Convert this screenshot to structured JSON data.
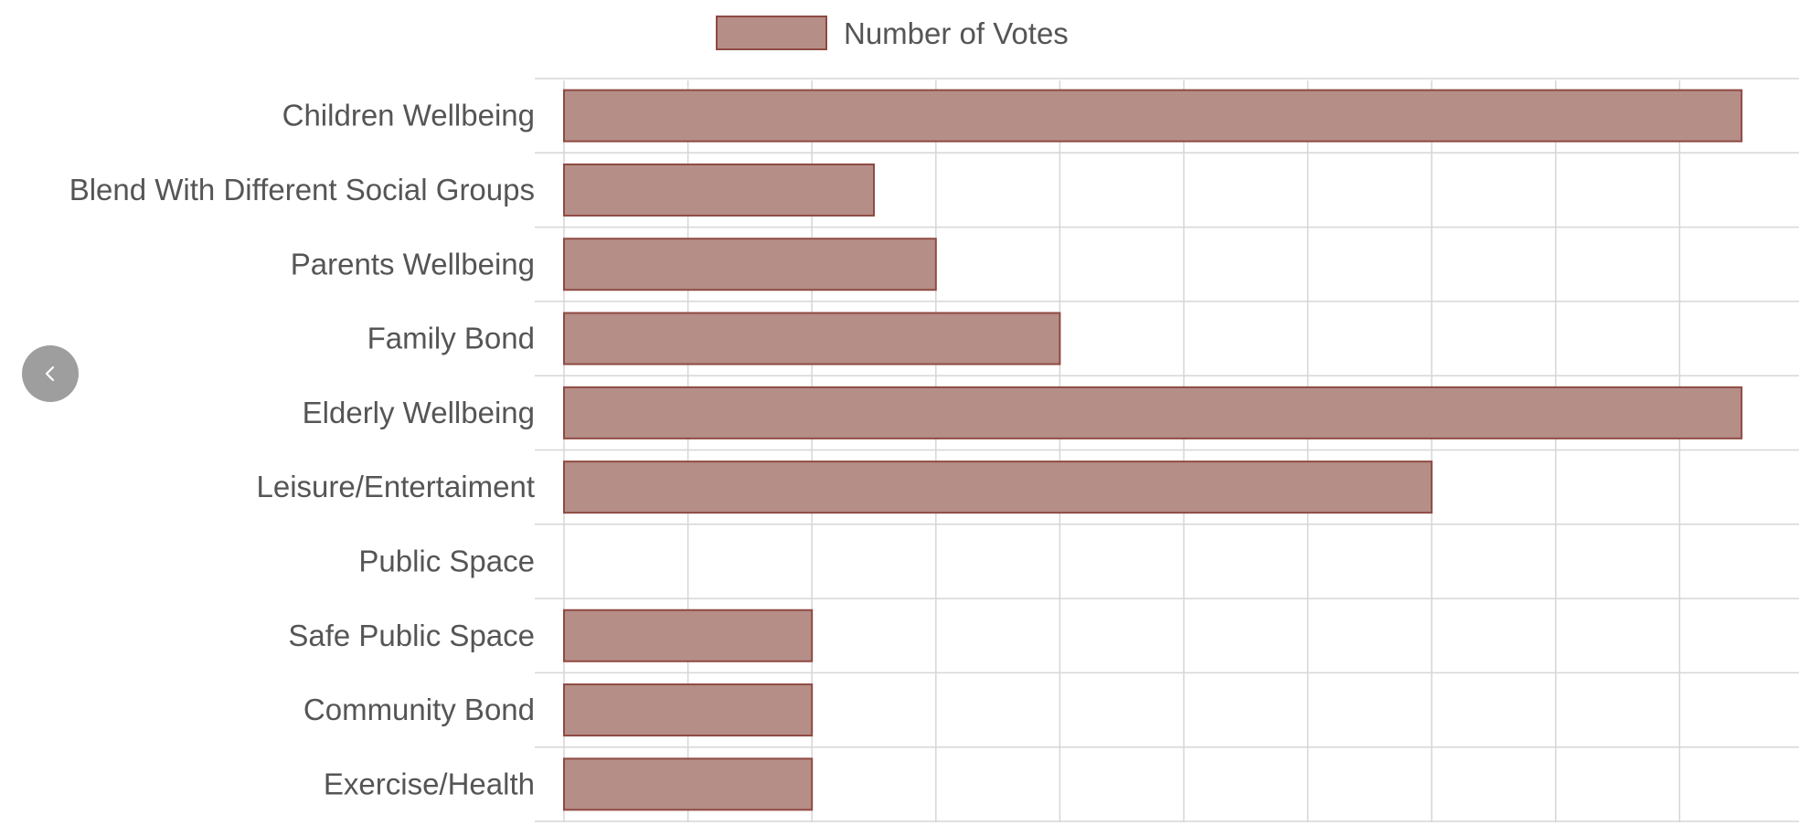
{
  "colors": {
    "bar_fill": "#b58e88",
    "bar_stroke": "#8f4a42",
    "grid": "#d6d6d6",
    "text": "#555555",
    "nav_button": "#9e9e9e"
  },
  "nav": {
    "prev_icon": "chevron-left-icon"
  },
  "chart_data": {
    "type": "bar",
    "orientation": "horizontal",
    "categories": [
      "Children Wellbeing",
      "Blend With Different Social Groups",
      "Parents Wellbeing",
      "Family Bond",
      "Elderly Wellbeing",
      "Leisure/Entertaiment",
      "Public Space",
      "Safe Public Space",
      "Community Bond",
      "Exercise/Health"
    ],
    "series": [
      {
        "name": "Number of Votes",
        "values": [
          9.5,
          2.5,
          3,
          4,
          9.5,
          7,
          0,
          2,
          2,
          2
        ]
      }
    ],
    "xlim": [
      0,
      10
    ],
    "grid": true,
    "legend": "top-center",
    "title": "",
    "xlabel": "",
    "ylabel": ""
  }
}
